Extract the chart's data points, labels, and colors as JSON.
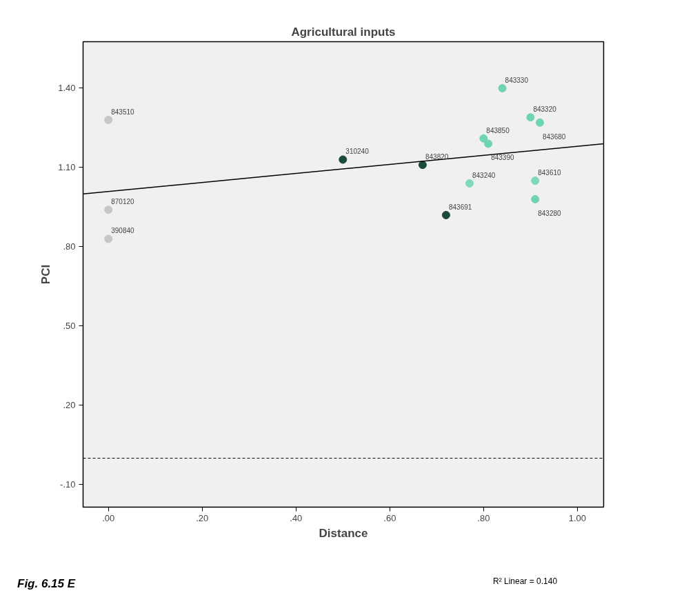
{
  "chart_data": {
    "type": "scatter",
    "title": "Agricultural inputs",
    "xlabel": "Distance",
    "ylabel": "PCI",
    "xlim": [
      -0.054,
      1.056
    ],
    "ylim": [
      -0.185,
      1.576
    ],
    "xticks": [
      {
        "value": 0,
        "label": ".00"
      },
      {
        "value": 0.2,
        "label": ".20"
      },
      {
        "value": 0.4,
        "label": ".40"
      },
      {
        "value": 0.6,
        "label": ".60"
      },
      {
        "value": 0.8,
        "label": ".80"
      },
      {
        "value": 1.0,
        "label": "1.00"
      }
    ],
    "yticks": [
      {
        "value": -0.1,
        "label": "-.10"
      },
      {
        "value": 0.2,
        "label": ".20"
      },
      {
        "value": 0.5,
        "label": ".50"
      },
      {
        "value": 0.8,
        "label": ".80"
      },
      {
        "value": 1.1,
        "label": "1.10"
      },
      {
        "value": 1.4,
        "label": "1.40"
      }
    ],
    "grid": false,
    "series": [
      {
        "marker": "circle",
        "x": [
          0,
          0,
          0,
          0.5,
          0.67,
          0.72,
          0.77,
          0.8,
          0.81,
          0.84,
          0.9,
          0.92,
          0.91,
          0.91
        ],
        "values": [
          1.28,
          0.94,
          0.83,
          1.13,
          1.11,
          0.92,
          1.04,
          1.21,
          1.19,
          1.4,
          1.29,
          1.27,
          1.05,
          0.98
        ],
        "colors": [
          "#c6c6c6",
          "#c6c6c6",
          "#c6c6c6",
          "#1c4a38",
          "#1c4a38",
          "#1c4a38",
          "#7fd9b8",
          "#6fd4b0",
          "#6fd4b0",
          "#6fd4b0",
          "#6fd4b0",
          "#6fd4b0",
          "#7fd9b8",
          "#6fd4b0"
        ]
      },
      {
        "type": "line",
        "x": [
          -0.054,
          1.056
        ],
        "values": [
          1.0,
          1.19
        ],
        "color": "#000000",
        "line_style": "solid"
      }
    ],
    "ref_lines": [
      {
        "axis": "y",
        "value": 0,
        "color": "#000000",
        "line_style": "dashed"
      }
    ],
    "annotations": [
      {
        "text": "843510",
        "x": 0,
        "y": 1.28
      },
      {
        "text": "870120",
        "x": 0,
        "y": 0.94
      },
      {
        "text": "390840",
        "x": 0,
        "y": 0.83
      },
      {
        "text": "310240",
        "x": 0.5,
        "y": 1.13
      },
      {
        "text": "843820",
        "x": 0.67,
        "y": 1.11
      },
      {
        "text": "843691",
        "x": 0.72,
        "y": 0.92
      },
      {
        "text": "843240",
        "x": 0.77,
        "y": 1.04
      },
      {
        "text": "843850",
        "x": 0.8,
        "y": 1.21
      },
      {
        "text": "843390",
        "x": 0.81,
        "y": 1.19
      },
      {
        "text": "843330",
        "x": 0.84,
        "y": 1.4
      },
      {
        "text": "843320",
        "x": 0.9,
        "y": 1.29
      },
      {
        "text": "843680",
        "x": 0.92,
        "y": 1.27
      },
      {
        "text": "843610",
        "x": 0.91,
        "y": 1.05
      },
      {
        "text": "843280",
        "x": 0.91,
        "y": 0.98
      },
      "Fig. 6.15 E",
      "R² Linear = 0.140"
    ]
  }
}
